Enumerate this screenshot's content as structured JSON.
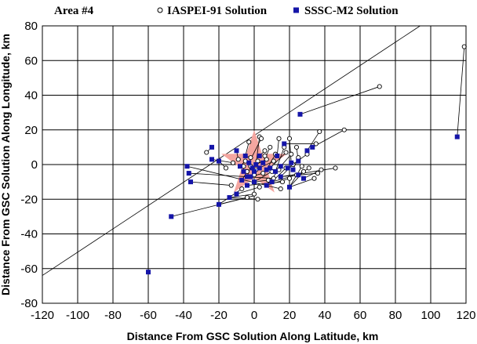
{
  "chart_data": {
    "type": "scatter",
    "title": "Area #4",
    "xlabel": "Distance From GSC Solution Along Latitude, km",
    "ylabel": "Distance From GSC Solution Along Longitude, km",
    "xlim": [
      -120,
      120
    ],
    "ylim": [
      -80,
      80
    ],
    "x_ticks": [
      -120,
      -100,
      -80,
      -60,
      -40,
      -20,
      0,
      20,
      40,
      60,
      80,
      100,
      120
    ],
    "y_ticks": [
      -80,
      -60,
      -40,
      -20,
      0,
      20,
      40,
      60,
      80
    ],
    "grid": true,
    "legend": {
      "placement": "top",
      "entries": [
        {
          "label": "IASPEI-91 Solution",
          "marker": "open-circle"
        },
        {
          "label": "SSSC-M2 Solution",
          "marker": "filled-square"
        }
      ]
    },
    "reference_marker": {
      "shape": "star",
      "x": 0,
      "y": 0,
      "color": "#f4a6a0"
    },
    "colors": {
      "sssc": "#1515a8",
      "iaspei": "#000000",
      "star": "#f4a6a0",
      "grid": "#000000"
    },
    "reference_lines": [
      {
        "x1": -120,
        "y1": -64,
        "x2": 94,
        "y2": 80
      },
      {
        "x1": -47,
        "y1": -30,
        "x2": 0,
        "y2": -18
      }
    ],
    "series": [
      {
        "name": "IASPEI-91 Solution",
        "points": [
          [
            119,
            68
          ],
          [
            71,
            45
          ],
          [
            51,
            20
          ],
          [
            37,
            19
          ],
          [
            -27,
            7
          ],
          [
            -16,
            -2
          ],
          [
            -3,
            13
          ],
          [
            3,
            16
          ],
          [
            4,
            15
          ],
          [
            14,
            15
          ],
          [
            20,
            15
          ],
          [
            24,
            10
          ],
          [
            35,
            12
          ],
          [
            30,
            6
          ],
          [
            25,
            4
          ],
          [
            21,
            6
          ],
          [
            17,
            10
          ],
          [
            18,
            7
          ],
          [
            12,
            6
          ],
          [
            9,
            10
          ],
          [
            6,
            8
          ],
          [
            11,
            2
          ],
          [
            7,
            3
          ],
          [
            2,
            2
          ],
          [
            -2,
            4
          ],
          [
            -5,
            2
          ],
          [
            -9,
            3
          ],
          [
            -12,
            1
          ],
          [
            -6,
            -1
          ],
          [
            -2,
            -1
          ],
          [
            -4,
            -4
          ],
          [
            0,
            -6
          ],
          [
            5,
            -5
          ],
          [
            10,
            -4
          ],
          [
            14,
            -3
          ],
          [
            18,
            -2
          ],
          [
            22,
            0
          ],
          [
            27,
            -1
          ],
          [
            31,
            -2
          ],
          [
            38,
            -3
          ],
          [
            46,
            -2
          ],
          [
            28,
            -4
          ],
          [
            24,
            -6
          ],
          [
            20,
            -8
          ],
          [
            36,
            -5
          ],
          [
            34,
            -8
          ],
          [
            16,
            -10
          ],
          [
            8,
            -9
          ],
          [
            3,
            -13
          ],
          [
            0,
            -17
          ],
          [
            -7,
            -14
          ],
          [
            -13,
            -12
          ],
          [
            -4,
            -19
          ],
          [
            2,
            -20
          ],
          [
            11,
            -8
          ],
          [
            15,
            -14
          ],
          [
            6,
            5
          ],
          [
            1,
            -3
          ]
        ]
      },
      {
        "name": "SSSC-M2 Solution",
        "points": [
          [
            115,
            16
          ],
          [
            26,
            29
          ],
          [
            -24,
            10
          ],
          [
            -24,
            3
          ],
          [
            -20,
            2
          ],
          [
            -10,
            8
          ],
          [
            -5,
            5
          ],
          [
            -3,
            1
          ],
          [
            -8,
            -1
          ],
          [
            -6,
            -4
          ],
          [
            -4,
            -7
          ],
          [
            -7,
            -9
          ],
          [
            -1,
            -2
          ],
          [
            1,
            0
          ],
          [
            3,
            -2
          ],
          [
            5,
            1
          ],
          [
            7,
            -3
          ],
          [
            9,
            -2
          ],
          [
            12,
            -4
          ],
          [
            15,
            -1
          ],
          [
            19,
            -2
          ],
          [
            22,
            -3
          ],
          [
            25,
            -6
          ],
          [
            28,
            -8
          ],
          [
            21,
            1
          ],
          [
            25,
            2
          ],
          [
            30,
            8
          ],
          [
            33,
            10
          ],
          [
            17,
            12
          ],
          [
            13,
            5
          ],
          [
            10,
            -10
          ],
          [
            15,
            -7
          ],
          [
            20,
            -13
          ],
          [
            7,
            -12
          ],
          [
            0,
            -10
          ],
          [
            -4,
            -12
          ],
          [
            -10,
            -17
          ],
          [
            -14,
            -19
          ],
          [
            -20,
            -23
          ],
          [
            -36,
            -10
          ],
          [
            -37,
            -5
          ],
          [
            -38,
            -1
          ],
          [
            -47,
            -30
          ],
          [
            -60,
            -62
          ],
          [
            0,
            -4
          ],
          [
            -2,
            -7
          ],
          [
            3,
            5
          ]
        ]
      }
    ],
    "connections": [
      [
        [
          115,
          16
        ],
        [
          119,
          68
        ]
      ],
      [
        [
          26,
          29
        ],
        [
          71,
          45
        ]
      ],
      [
        [
          33,
          10
        ],
        [
          51,
          20
        ]
      ],
      [
        [
          30,
          8
        ],
        [
          37,
          19
        ]
      ],
      [
        [
          -24,
          10
        ],
        [
          -27,
          7
        ]
      ],
      [
        [
          -20,
          2
        ],
        [
          -16,
          -2
        ]
      ],
      [
        [
          -5,
          5
        ],
        [
          -3,
          13
        ]
      ],
      [
        [
          1,
          0
        ],
        [
          3,
          16
        ]
      ],
      [
        [
          -3,
          1
        ],
        [
          4,
          15
        ]
      ],
      [
        [
          13,
          5
        ],
        [
          14,
          15
        ]
      ],
      [
        [
          21,
          1
        ],
        [
          20,
          15
        ]
      ],
      [
        [
          25,
          2
        ],
        [
          24,
          10
        ]
      ],
      [
        [
          17,
          12
        ],
        [
          35,
          12
        ]
      ],
      [
        [
          19,
          -2
        ],
        [
          30,
          6
        ]
      ],
      [
        [
          22,
          -3
        ],
        [
          25,
          4
        ]
      ],
      [
        [
          15,
          -1
        ],
        [
          21,
          6
        ]
      ],
      [
        [
          12,
          -4
        ],
        [
          17,
          10
        ]
      ],
      [
        [
          9,
          -2
        ],
        [
          18,
          7
        ]
      ],
      [
        [
          7,
          -3
        ],
        [
          12,
          6
        ]
      ],
      [
        [
          5,
          1
        ],
        [
          9,
          10
        ]
      ],
      [
        [
          3,
          5
        ],
        [
          6,
          8
        ]
      ],
      [
        [
          3,
          -2
        ],
        [
          11,
          2
        ]
      ],
      [
        [
          1,
          0
        ],
        [
          7,
          3
        ]
      ],
      [
        [
          -1,
          -2
        ],
        [
          2,
          2
        ]
      ],
      [
        [
          -5,
          5
        ],
        [
          -2,
          4
        ]
      ],
      [
        [
          -8,
          -1
        ],
        [
          -5,
          2
        ]
      ],
      [
        [
          -10,
          8
        ],
        [
          -9,
          3
        ]
      ],
      [
        [
          -24,
          3
        ],
        [
          -12,
          1
        ]
      ],
      [
        [
          -6,
          -4
        ],
        [
          -6,
          -1
        ]
      ],
      [
        [
          -4,
          -7
        ],
        [
          -2,
          -1
        ]
      ],
      [
        [
          -7,
          -9
        ],
        [
          -4,
          -4
        ]
      ],
      [
        [
          0,
          -4
        ],
        [
          0,
          -6
        ]
      ],
      [
        [
          -2,
          -7
        ],
        [
          5,
          -5
        ]
      ],
      [
        [
          0,
          -10
        ],
        [
          10,
          -4
        ]
      ],
      [
        [
          7,
          -12
        ],
        [
          14,
          -3
        ]
      ],
      [
        [
          10,
          -10
        ],
        [
          18,
          -2
        ]
      ],
      [
        [
          15,
          -7
        ],
        [
          22,
          0
        ]
      ],
      [
        [
          20,
          -13
        ],
        [
          27,
          -1
        ]
      ],
      [
        [
          25,
          -6
        ],
        [
          31,
          -2
        ]
      ],
      [
        [
          28,
          -8
        ],
        [
          38,
          -3
        ]
      ],
      [
        [
          15,
          -7
        ],
        [
          46,
          -2
        ]
      ],
      [
        [
          20,
          -13
        ],
        [
          28,
          -4
        ]
      ],
      [
        [
          10,
          -10
        ],
        [
          24,
          -6
        ]
      ],
      [
        [
          7,
          -12
        ],
        [
          20,
          -8
        ]
      ],
      [
        [
          15,
          -7
        ],
        [
          36,
          -5
        ]
      ],
      [
        [
          20,
          -13
        ],
        [
          34,
          -8
        ]
      ],
      [
        [
          -4,
          -12
        ],
        [
          16,
          -10
        ]
      ],
      [
        [
          0,
          -10
        ],
        [
          8,
          -9
        ]
      ],
      [
        [
          -10,
          -17
        ],
        [
          3,
          -13
        ]
      ],
      [
        [
          -14,
          -19
        ],
        [
          0,
          -17
        ]
      ],
      [
        [
          -20,
          -23
        ],
        [
          -7,
          -14
        ]
      ],
      [
        [
          -36,
          -10
        ],
        [
          -13,
          -12
        ]
      ],
      [
        [
          -20,
          -23
        ],
        [
          -4,
          -19
        ]
      ],
      [
        [
          -14,
          -19
        ],
        [
          2,
          -20
        ]
      ],
      [
        [
          -37,
          -5
        ],
        [
          11,
          -8
        ]
      ],
      [
        [
          -38,
          -1
        ],
        [
          15,
          -14
        ]
      ]
    ]
  }
}
